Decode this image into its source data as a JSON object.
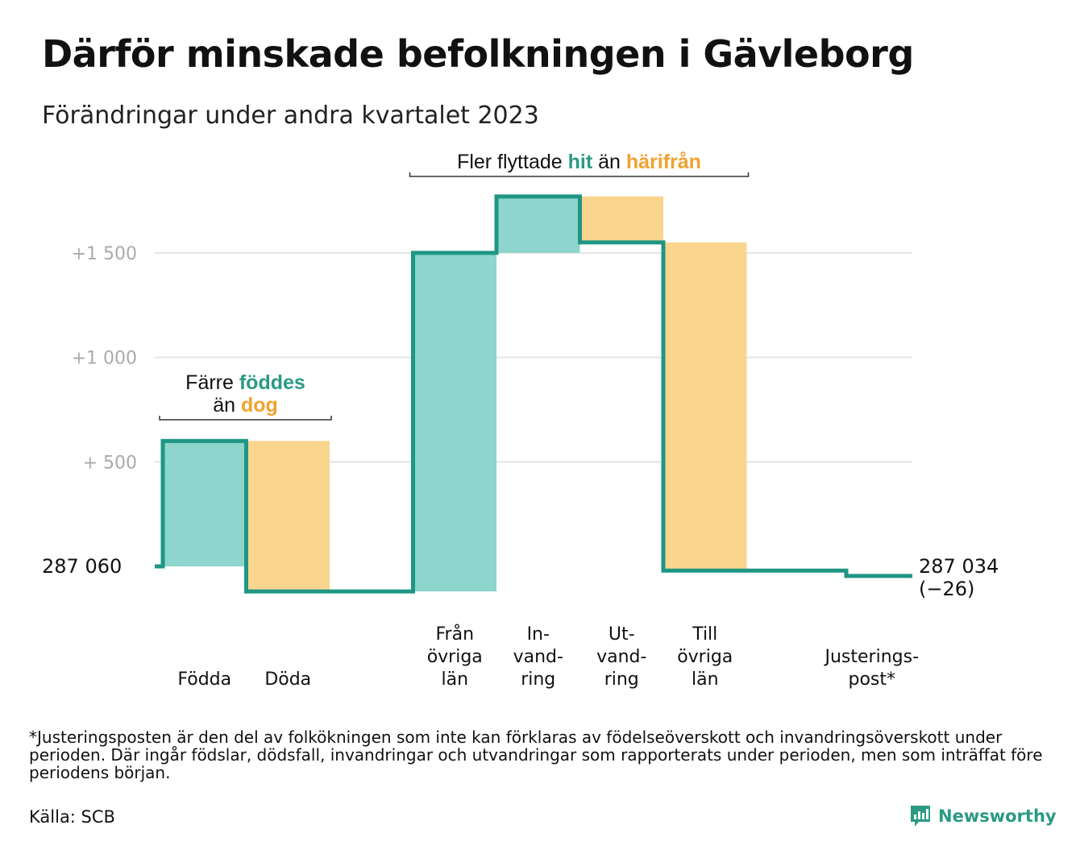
{
  "title": "Därför minskade befolkningen i Gävleborg",
  "subtitle": "Förändringar under andra kvartalet 2023",
  "footnote": "*Justeringsposten är den del av folkökningen som inte kan förklaras av födelseöverskott och invandringsöverskott under perioden. Där ingår födslar, dödsfall, invandringar och utvandringar som rapporterats under perioden, men som inträffat före periodens början.",
  "source": "Källa: SCB",
  "brand": "Newsworthy",
  "colors": {
    "increase": "#8dd5cd",
    "decrease": "#fad58d",
    "line": "#1f9684",
    "grid": "#e3e3e3",
    "teal_text": "#2a9a83",
    "orange_text": "#f2a22e",
    "axis_text": "#aaaaaa"
  },
  "chart_data": {
    "type": "waterfall",
    "title": "Därför minskade befolkningen i Gävleborg",
    "subtitle": "Förändringar under andra kvartalet 2023",
    "start_label": "287 060",
    "start_value": 287060,
    "end_label": "287 034",
    "end_change": "(−26)",
    "end_value": 287034,
    "yticks": [
      {
        "value": 500,
        "label": "+ 500"
      },
      {
        "value": 1000,
        "label": "+1 000"
      },
      {
        "value": 1500,
        "label": "+1 500"
      }
    ],
    "ylim": [
      -150,
      1780
    ],
    "steps": [
      {
        "category": "Födda",
        "value": 600,
        "type": "increase"
      },
      {
        "category": "Döda",
        "value": -720,
        "type": "decrease"
      },
      {
        "category": "",
        "value": 0,
        "type": "gap"
      },
      {
        "category": "Från övriga län",
        "value": 1620,
        "type": "increase"
      },
      {
        "category": "Invandring",
        "value": 270,
        "type": "increase"
      },
      {
        "category": "Utvandring",
        "value": -220,
        "type": "decrease"
      },
      {
        "category": "Till övriga län",
        "value": -1570,
        "type": "decrease"
      },
      {
        "category": "",
        "value": 0,
        "type": "gap"
      },
      {
        "category": "Justeringspost*",
        "value": -26,
        "type": "adjustment"
      }
    ],
    "x_labels": [
      {
        "step": 0,
        "lines": [
          "Födda"
        ]
      },
      {
        "step": 1,
        "lines": [
          "Döda"
        ]
      },
      {
        "step": 3,
        "lines": [
          "Från",
          "övriga",
          "län"
        ]
      },
      {
        "step": 4,
        "lines": [
          "In-",
          "vand-",
          "ring"
        ]
      },
      {
        "step": 5,
        "lines": [
          "Ut-",
          "vand-",
          "ring"
        ]
      },
      {
        "step": 6,
        "lines": [
          "Till",
          "övriga",
          "län"
        ]
      },
      {
        "step": 8,
        "lines": [
          "Justerings-",
          "post*"
        ]
      }
    ],
    "annotations": [
      {
        "id": "births",
        "from_step": 0,
        "to_step": 1,
        "lines": [
          [
            {
              "text": "Färre ",
              "style": "plain"
            },
            {
              "text": "föddes",
              "style": "teal"
            }
          ],
          [
            {
              "text": "än ",
              "style": "plain"
            },
            {
              "text": "dog",
              "style": "orange"
            }
          ]
        ]
      },
      {
        "id": "moves",
        "from_step": 3,
        "to_step": 6,
        "lines": [
          [
            {
              "text": "Fler flyttade ",
              "style": "plain"
            },
            {
              "text": "hit",
              "style": "teal"
            },
            {
              "text": "  än ",
              "style": "plain"
            },
            {
              "text": "härifrån",
              "style": "orange"
            }
          ]
        ]
      }
    ]
  }
}
